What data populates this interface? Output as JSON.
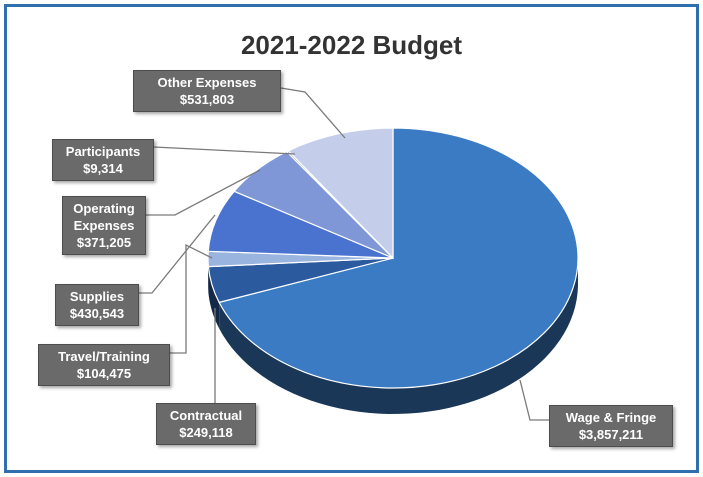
{
  "chart_data": {
    "type": "pie",
    "title": "2021-2022 Budget",
    "slices": [
      {
        "label": "Wage & Fringe",
        "value_text": "$3,857,211",
        "value": 3857211,
        "color": "#3a7bc4"
      },
      {
        "label": "Contractual",
        "value_text": "$249,118",
        "value": 249118,
        "color": "#2b5a9e"
      },
      {
        "label": "Travel/Training",
        "value_text": "$104,475",
        "value": 104475,
        "color": "#9ab4e0"
      },
      {
        "label": "Supplies",
        "value_text": "$430,543",
        "value": 430543,
        "color": "#4a72cf"
      },
      {
        "label": "Operating Expenses",
        "value_text": "$371,205",
        "value": 371205,
        "color": "#7f97d6"
      },
      {
        "label": "Participants",
        "value_text": "$9,314",
        "value": 9314,
        "color": "#5b6fb0"
      },
      {
        "label": "Other Expenses",
        "value_text": "$531,803",
        "value": 531803,
        "color": "#c4cde9"
      }
    ],
    "legend": "callout labels"
  },
  "labels": {
    "other": {
      "name": "Other Expenses",
      "value": "$531,803"
    },
    "participants": {
      "name": "Participants",
      "value": "$9,314"
    },
    "operating_line1": "Operating",
    "operating_line2": "Expenses",
    "operating_value": "$371,205",
    "supplies": {
      "name": "Supplies",
      "value": "$430,543"
    },
    "travel": {
      "name": "Travel/Training",
      "value": "$104,475"
    },
    "contractual": {
      "name": "Contractual",
      "value": "$249,118"
    },
    "wage": {
      "name": "Wage & Fringe",
      "value": "$3,857,211"
    }
  }
}
